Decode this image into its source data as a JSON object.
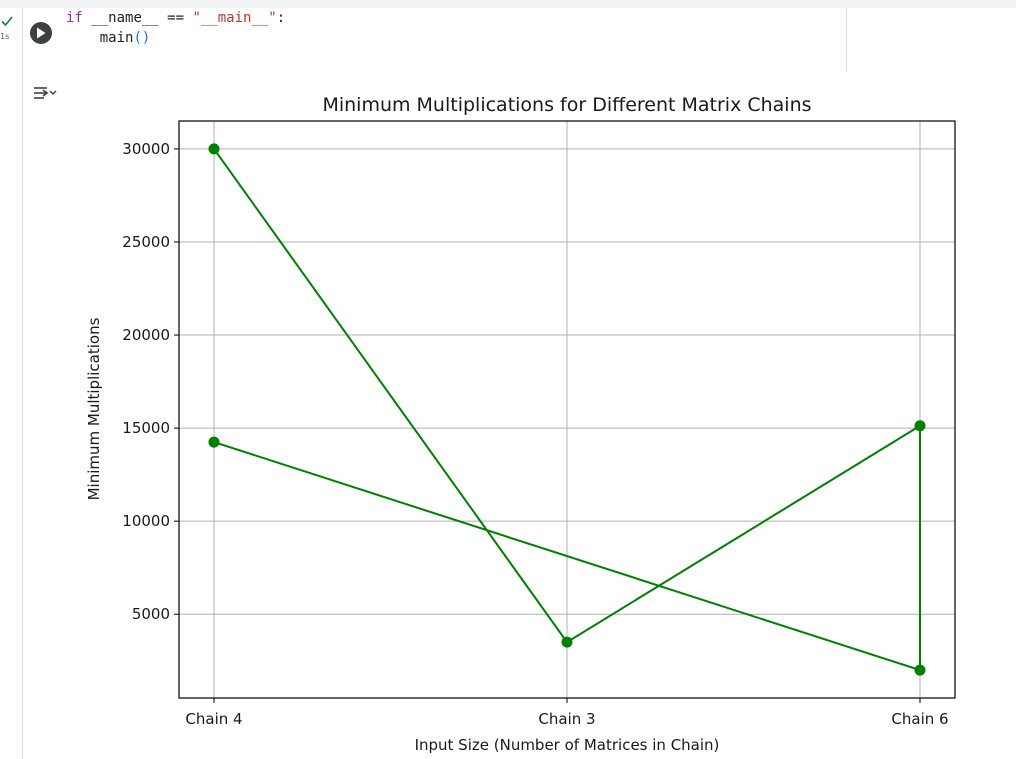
{
  "cell": {
    "exec_time": "1s",
    "code_lines": [
      [
        {
          "t": "if ",
          "c": "kw"
        },
        {
          "t": "__name__ == ",
          "c": ""
        },
        {
          "t": "\"__main__\"",
          "c": "str"
        },
        {
          "t": ":",
          "c": ""
        }
      ],
      [
        {
          "t": "    main",
          "c": ""
        },
        {
          "t": "()",
          "c": "paren"
        }
      ]
    ]
  },
  "colors": {
    "series": "#008000",
    "grid": "#b0b0b0",
    "run_button": "#3c4043",
    "check": "#188038"
  },
  "icons": {
    "run": "play-icon",
    "status": "check-icon",
    "output": "output-toggle-icon"
  },
  "chart_data": {
    "type": "line",
    "title": "Minimum Multiplications for Different Matrix Chains",
    "xlabel": "Input Size (Number of Matrices in Chain)",
    "ylabel": "Minimum Multiplications",
    "categories": [
      "Chain 4",
      "Chain 3",
      "Chain 6"
    ],
    "ylim": [
      500,
      31500
    ],
    "yticks": [
      5000,
      10000,
      15000,
      20000,
      25000,
      30000
    ],
    "grid": true,
    "marker": "circle",
    "series": [
      {
        "points": [
          {
            "x": "Chain 4",
            "y": 30000
          },
          {
            "x": "Chain 3",
            "y": 3500
          },
          {
            "x": "Chain 6",
            "y": 15125
          },
          {
            "x": "Chain 6",
            "y": 2000
          },
          {
            "x": "Chain 4",
            "y": 14250
          }
        ]
      }
    ]
  }
}
